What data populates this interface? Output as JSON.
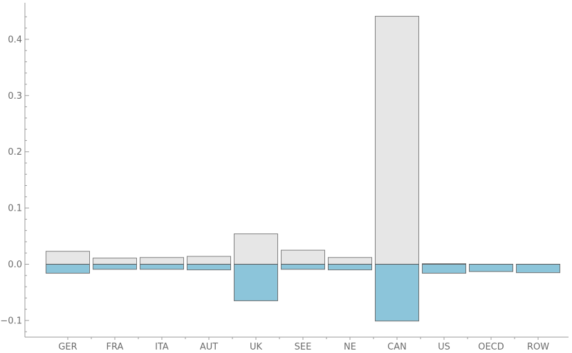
{
  "chart_data": {
    "type": "bar",
    "title": "",
    "xlabel": "",
    "ylabel": "",
    "ylim": [
      -0.13,
      0.465
    ],
    "yticks": [
      -0.1,
      0.0,
      0.1,
      0.2,
      0.3,
      0.4
    ],
    "ytick_labels": [
      "−0.1",
      "0.0",
      "0.1",
      "0.2",
      "0.3",
      "0.4"
    ],
    "categories": [
      "GER",
      "FRA",
      "ITA",
      "AUT",
      "UK",
      "SEE",
      "NE",
      "CAN",
      "US",
      "OECD",
      "ROW"
    ],
    "series": [
      {
        "values": [
          0.023,
          0.011,
          0.012,
          0.014,
          0.054,
          0.025,
          0.012,
          0.441,
          0.001,
          0.0,
          0.0
        ]
      },
      {
        "values": [
          -0.016,
          -0.009,
          -0.009,
          -0.01,
          -0.065,
          -0.009,
          -0.01,
          -0.101,
          -0.016,
          -0.013,
          -0.015
        ]
      }
    ],
    "colors": {
      "positive": "#e6e6e6",
      "negative": "#8cc5da"
    },
    "grid": false,
    "legend": "none"
  }
}
